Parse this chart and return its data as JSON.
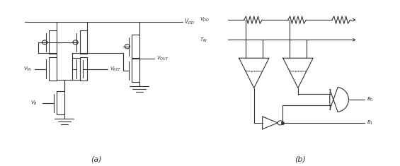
{
  "fig_width": 5.65,
  "fig_height": 2.35,
  "dpi": 100,
  "bg_color": "#ffffff",
  "line_color": "#333333",
  "lw": 0.8,
  "label_a": "(a)",
  "label_b": "(b)",
  "text_vdd_a": "$V_{DD}$",
  "text_vin": "$V_{IN}$",
  "text_vref": "$V_{REF}$",
  "text_vout": "$V_{OUT}$",
  "text_vb": "$V_B$",
  "text_vdd_b": "$V_{DD}$",
  "text_tin": "$T_{IN}$",
  "text_b0": "$B_0$",
  "text_b1": "$B_1$",
  "text_comp": "Comparator"
}
